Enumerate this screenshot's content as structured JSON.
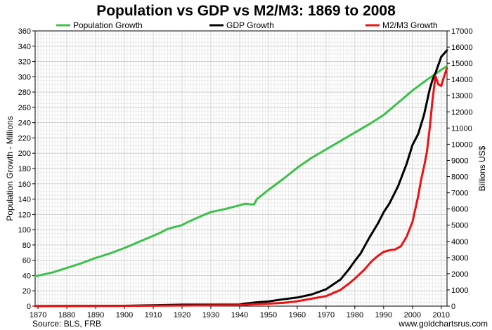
{
  "chart_data": {
    "type": "line",
    "title": "Population vs GDP vs M2/M3: 1869 to 2008",
    "ylabel_left": "Population Growth - Millions",
    "ylabel_right": "Billions US$",
    "ylim_left": [
      0,
      360
    ],
    "ylim_right": [
      0,
      17000
    ],
    "xlim": [
      1869,
      2012
    ],
    "x_ticks": [
      "1870",
      "1880",
      "1890",
      "1900",
      "1910",
      "1920",
      "1930",
      "1940",
      "1950",
      "1960",
      "1970",
      "1980",
      "1990",
      "2000",
      "2010"
    ],
    "y_ticks_left": [
      "0",
      "20",
      "40",
      "60",
      "80",
      "100",
      "120",
      "140",
      "160",
      "180",
      "200",
      "220",
      "240",
      "260",
      "280",
      "300",
      "320",
      "340",
      "360"
    ],
    "y_ticks_right": [
      "0",
      "1000",
      "2000",
      "3000",
      "4000",
      "5000",
      "6000",
      "7000",
      "8000",
      "9000",
      "10000",
      "11000",
      "12000",
      "13000",
      "14000",
      "15000",
      "16000",
      "17000"
    ],
    "grid": true,
    "legend_position": "top",
    "series": [
      {
        "name": "Population Growth",
        "color": "#3cc14a",
        "axis": "left",
        "points": [
          [
            1869,
            39
          ],
          [
            1875,
            44
          ],
          [
            1880,
            50
          ],
          [
            1885,
            56
          ],
          [
            1890,
            63
          ],
          [
            1895,
            69
          ],
          [
            1900,
            76
          ],
          [
            1905,
            84
          ],
          [
            1910,
            92
          ],
          [
            1913,
            97
          ],
          [
            1915,
            101
          ],
          [
            1917,
            103
          ],
          [
            1919,
            105
          ],
          [
            1920,
            106
          ],
          [
            1922,
            110
          ],
          [
            1925,
            115
          ],
          [
            1928,
            120
          ],
          [
            1930,
            123
          ],
          [
            1935,
            127
          ],
          [
            1940,
            132
          ],
          [
            1942,
            134
          ],
          [
            1944,
            133
          ],
          [
            1945,
            133
          ],
          [
            1946,
            140
          ],
          [
            1948,
            146
          ],
          [
            1950,
            152
          ],
          [
            1955,
            166
          ],
          [
            1960,
            181
          ],
          [
            1965,
            194
          ],
          [
            1970,
            205
          ],
          [
            1975,
            216
          ],
          [
            1980,
            227
          ],
          [
            1985,
            238
          ],
          [
            1990,
            250
          ],
          [
            1995,
            266
          ],
          [
            2000,
            282
          ],
          [
            2005,
            296
          ],
          [
            2010,
            309
          ],
          [
            2012,
            314
          ]
        ]
      },
      {
        "name": "GDP Growth",
        "color": "#000000",
        "axis": "right",
        "points": [
          [
            1869,
            5
          ],
          [
            1900,
            20
          ],
          [
            1920,
            90
          ],
          [
            1930,
            90
          ],
          [
            1940,
            100
          ],
          [
            1942,
            160
          ],
          [
            1945,
            220
          ],
          [
            1950,
            290
          ],
          [
            1955,
            420
          ],
          [
            1960,
            530
          ],
          [
            1965,
            720
          ],
          [
            1970,
            1040
          ],
          [
            1975,
            1640
          ],
          [
            1978,
            2290
          ],
          [
            1980,
            2790
          ],
          [
            1982,
            3250
          ],
          [
            1985,
            4220
          ],
          [
            1988,
            5100
          ],
          [
            1990,
            5800
          ],
          [
            1992,
            6340
          ],
          [
            1995,
            7400
          ],
          [
            1998,
            8800
          ],
          [
            2000,
            9950
          ],
          [
            2002,
            10640
          ],
          [
            2004,
            11800
          ],
          [
            2005,
            12600
          ],
          [
            2006,
            13400
          ],
          [
            2007,
            14000
          ],
          [
            2008,
            14400
          ],
          [
            2009,
            14900
          ],
          [
            2010,
            15400
          ],
          [
            2011,
            15600
          ],
          [
            2012,
            15800
          ]
        ]
      },
      {
        "name": "M2/M3 Growth",
        "color": "#ee1111",
        "axis": "right",
        "points": [
          [
            1869,
            5
          ],
          [
            1900,
            15
          ],
          [
            1920,
            40
          ],
          [
            1930,
            50
          ],
          [
            1940,
            60
          ],
          [
            1945,
            120
          ],
          [
            1950,
            150
          ],
          [
            1955,
            200
          ],
          [
            1960,
            300
          ],
          [
            1965,
            460
          ],
          [
            1970,
            620
          ],
          [
            1975,
            1000
          ],
          [
            1978,
            1400
          ],
          [
            1980,
            1700
          ],
          [
            1983,
            2200
          ],
          [
            1986,
            2800
          ],
          [
            1988,
            3100
          ],
          [
            1990,
            3350
          ],
          [
            1992,
            3450
          ],
          [
            1994,
            3500
          ],
          [
            1996,
            3700
          ],
          [
            1998,
            4300
          ],
          [
            2000,
            5200
          ],
          [
            2001,
            6000
          ],
          [
            2002,
            6800
          ],
          [
            2003,
            7800
          ],
          [
            2004,
            8600
          ],
          [
            2005,
            9500
          ],
          [
            2006,
            11000
          ],
          [
            2007,
            12800
          ],
          [
            2008,
            14200
          ],
          [
            2009,
            13700
          ],
          [
            2010,
            13600
          ],
          [
            2011,
            14200
          ],
          [
            2012,
            14700
          ]
        ]
      }
    ],
    "source_text": "Source: BLS, FRB",
    "website_text": "www.goldchartsrus.com"
  }
}
